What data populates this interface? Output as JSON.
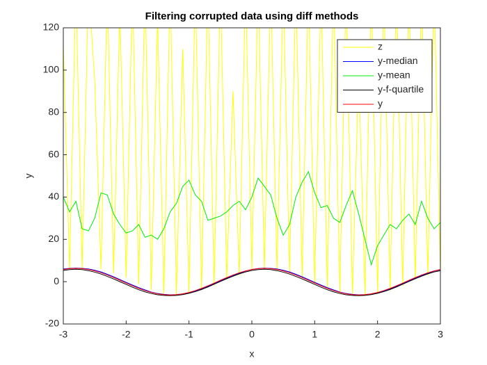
{
  "chart_data": {
    "type": "line",
    "title": "Filtering corrupted data using diff methods",
    "x_label": "x",
    "y_label": "y",
    "x": [
      -3,
      -2.9,
      -2.8,
      -2.7,
      -2.6,
      -2.5,
      -2.4,
      -2.3,
      -2.2,
      -2.1,
      -2,
      -1.9,
      -1.8,
      -1.7,
      -1.6,
      -1.5,
      -1.4,
      -1.3,
      -1.2,
      -1.1,
      -1,
      -0.9,
      -0.8,
      -0.7,
      -0.6,
      -0.5,
      -0.4,
      -0.3,
      -0.2,
      -0.1,
      0,
      0.1,
      0.2,
      0.3,
      0.4,
      0.5,
      0.6,
      0.7,
      0.8,
      0.9,
      1,
      1.1,
      1.2,
      1.3,
      1.4,
      1.5,
      1.6,
      1.7,
      1.8,
      1.9,
      2,
      2.1,
      2.2,
      2.3,
      2.4,
      2.5,
      2.6,
      2.7,
      2.8,
      2.9,
      3
    ],
    "series": [
      {
        "name": "z",
        "color": "#ffff00",
        "values": [
          112,
          6,
          140,
          6,
          140,
          95,
          6,
          140,
          4,
          130,
          2,
          140,
          -1,
          140,
          -4,
          125,
          -6,
          140,
          -6,
          110,
          -5,
          140,
          -4,
          140,
          -2,
          140,
          1,
          90,
          3,
          140,
          6,
          140,
          6,
          140,
          5,
          140,
          4,
          140,
          2,
          140,
          -1,
          140,
          -3,
          140,
          -5,
          140,
          -6,
          100,
          -6,
          140,
          -5,
          140,
          -4,
          140,
          -2,
          140,
          1,
          140,
          3,
          140,
          5
        ]
      },
      {
        "name": "y-median",
        "color": "#0000ff",
        "values": [
          6.0,
          6.3,
          6.4,
          6.3,
          6.0,
          5.4,
          4.6,
          3.5,
          2.3,
          1.0,
          -0.3,
          -1.6,
          -2.8,
          -3.9,
          -4.9,
          -5.6,
          -6.0,
          -6.2,
          -6.1,
          -5.8,
          -5.2,
          -4.4,
          -3.4,
          -2.2,
          -0.9,
          0.4,
          1.7,
          2.9,
          4.0,
          5.0,
          5.8,
          6.2,
          6.4,
          6.3,
          6.0,
          5.4,
          4.6,
          3.5,
          2.3,
          1.0,
          -0.3,
          -1.6,
          -2.8,
          -3.9,
          -4.9,
          -5.6,
          -6.0,
          -6.2,
          -6.1,
          -5.8,
          -5.2,
          -4.4,
          -3.4,
          -2.2,
          -0.9,
          0.4,
          1.7,
          2.9,
          4.0,
          5.0,
          5.6
        ]
      },
      {
        "name": "y-mean",
        "color": "#00ee00",
        "values": [
          40,
          33,
          38,
          25,
          24,
          30,
          42,
          41,
          32,
          27,
          23,
          24,
          27,
          21,
          22,
          20,
          25,
          33,
          37,
          45,
          48,
          41,
          38,
          29,
          30,
          31,
          33,
          36,
          38,
          34,
          40,
          49,
          45,
          41,
          30,
          22,
          27,
          40,
          47,
          52,
          42,
          35,
          36,
          30,
          28,
          36,
          43,
          32,
          20,
          8,
          17,
          22,
          27,
          25,
          29,
          32,
          27,
          38,
          30,
          25,
          28
        ]
      },
      {
        "name": "y-f-quartile",
        "color": "#000000",
        "values": [
          5.3,
          5.7,
          5.9,
          5.7,
          5.2,
          4.5,
          3.6,
          2.5,
          1.3,
          0.0,
          -1.3,
          -2.6,
          -3.8,
          -4.8,
          -5.6,
          -6.2,
          -6.5,
          -6.6,
          -6.5,
          -6.1,
          -5.5,
          -4.7,
          -3.7,
          -2.5,
          -1.2,
          0.1,
          1.4,
          2.6,
          3.7,
          4.6,
          5.3,
          5.7,
          5.9,
          5.7,
          5.2,
          4.5,
          3.6,
          2.5,
          1.3,
          0.0,
          -1.3,
          -2.6,
          -3.8,
          -4.8,
          -5.6,
          -6.2,
          -6.5,
          -6.6,
          -6.5,
          -6.1,
          -5.5,
          -4.7,
          -3.7,
          -2.5,
          -1.2,
          0.1,
          1.4,
          2.6,
          3.7,
          4.6,
          5.2
        ]
      },
      {
        "name": "y",
        "color": "#ff0000",
        "values": [
          5.76,
          6.16,
          6.3,
          6.16,
          5.76,
          5.1,
          4.21,
          3.15,
          1.95,
          0.66,
          -0.66,
          -1.95,
          -3.15,
          -4.21,
          -5.1,
          -5.76,
          -6.16,
          -6.3,
          -6.16,
          -5.76,
          -5.1,
          -4.21,
          -3.15,
          -1.95,
          -0.66,
          0.66,
          1.95,
          3.15,
          4.21,
          5.1,
          5.76,
          6.16,
          6.3,
          6.16,
          5.76,
          5.1,
          4.21,
          3.15,
          1.95,
          0.66,
          -0.66,
          -1.95,
          -3.15,
          -4.21,
          -5.1,
          -5.76,
          -6.16,
          -6.3,
          -6.16,
          -5.76,
          -5.1,
          -4.21,
          -3.15,
          -1.95,
          -0.66,
          0.66,
          1.95,
          3.15,
          4.21,
          5.1,
          5.76
        ]
      }
    ],
    "xlim": [
      -3,
      3
    ],
    "xticks": [
      -3,
      -2,
      -1,
      0,
      1,
      2,
      3
    ],
    "ylim": [
      -20,
      120
    ],
    "yticks": [
      -20,
      0,
      20,
      40,
      60,
      80,
      100,
      120
    ],
    "grid": false,
    "legend": "upper right"
  }
}
